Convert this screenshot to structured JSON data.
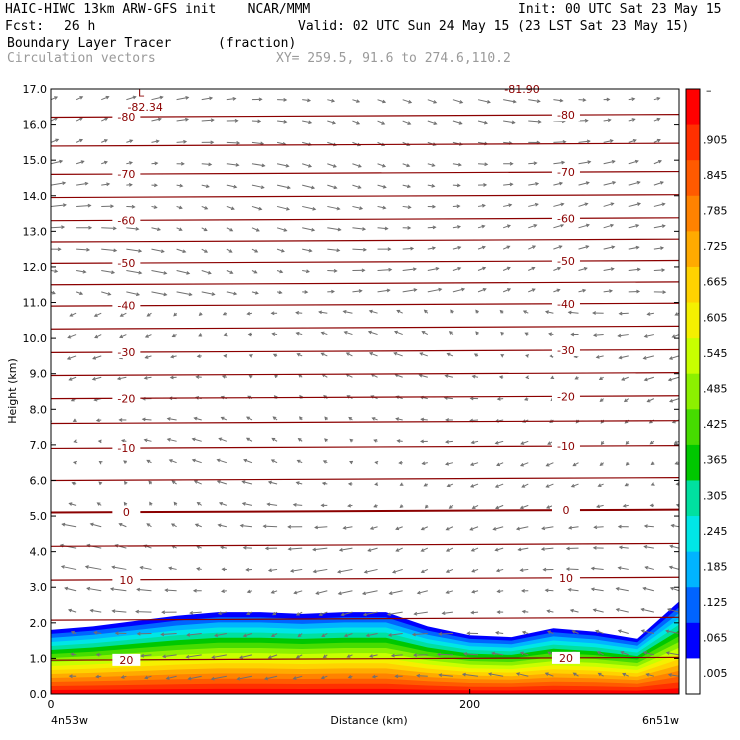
{
  "header": {
    "model_line": "HAIC-HIWC 13km ARW-GFS init    NCAR/MMM",
    "init_line": "Init: 00 UTC Sat 23 May 15",
    "fcst_label": "Fcst:",
    "fcst_value": "26 h",
    "valid_line": "Valid: 02 UTC Sun 24 May 15 (23 LST Sat 23 May 15)",
    "field_name": "Boundary Layer Tracer",
    "field_units": "(fraction)",
    "vector_name": "Circulation vectors",
    "xy_text": "XY= 259.5, 91.6 to 274.6,110.2"
  },
  "axes": {
    "ylabel": "Height (km)",
    "xlabel": "Distance (km)",
    "x_left_label": "4n53w",
    "x_right_label": "6n51w",
    "x_tick_labels": [
      "0",
      "200"
    ]
  },
  "colorbar": {
    "top_label": "–",
    "labels": [
      ".905",
      ".845",
      ".785",
      ".725",
      ".665",
      ".605",
      ".545",
      ".485",
      ".425",
      ".365",
      ".305",
      ".245",
      ".185",
      ".125",
      ".065",
      ".005"
    ],
    "colors": [
      "#ff0000",
      "#ff3000",
      "#ff5a00",
      "#ff8200",
      "#ffaa00",
      "#ffd200",
      "#f5f000",
      "#c8ff00",
      "#8cf000",
      "#46dc00",
      "#00c800",
      "#00e0a0",
      "#00e6e6",
      "#00b4ff",
      "#0064ff",
      "#0000ff",
      "#ffffff"
    ]
  },
  "chart_data": {
    "type": "heatmap",
    "title": "Boundary Layer Tracer",
    "xlabel": "Distance (km)",
    "ylabel": "Height (km)",
    "xlim": [
      0,
      300
    ],
    "ylim": [
      0,
      17
    ],
    "y_ticks": [
      0.0,
      1.0,
      2.0,
      3.0,
      4.0,
      5.0,
      6.0,
      7.0,
      8.0,
      9.0,
      10.0,
      11.0,
      12.0,
      13.0,
      14.0,
      15.0,
      16.0,
      17.0
    ],
    "x_ticks": [
      0,
      200
    ],
    "tracer_top_height_km": {
      "x": [
        0,
        20,
        40,
        60,
        80,
        100,
        120,
        140,
        160,
        180,
        200,
        220,
        240,
        260,
        280,
        300
      ],
      "top": [
        1.8,
        1.9,
        2.05,
        2.2,
        2.3,
        2.3,
        2.25,
        2.3,
        2.3,
        1.9,
        1.65,
        1.6,
        1.85,
        1.75,
        1.55,
        2.6
      ]
    },
    "temperature_contours": [
      {
        "label": "20",
        "height_km": 0.95
      },
      {
        "label": "10",
        "height_km": 3.2
      },
      {
        "label": "0",
        "height_km": 5.1
      },
      {
        "label": "-10",
        "height_km": 6.9
      },
      {
        "label": "-20",
        "height_km": 8.3
      },
      {
        "label": "-30",
        "height_km": 9.6
      },
      {
        "label": "-40",
        "height_km": 10.9
      },
      {
        "label": "-50",
        "height_km": 12.1
      },
      {
        "label": "-60",
        "height_km": 13.3
      },
      {
        "label": "-70",
        "height_km": 14.6
      },
      {
        "label": "-80",
        "height_km": 16.2
      }
    ],
    "extreme_labels": [
      {
        "text": "L",
        "x": 43,
        "y": 16.9
      },
      {
        "text": "-82.34",
        "x": 45,
        "y": 16.5
      },
      {
        "text": "-81.90",
        "x": 225,
        "y": 17.0
      }
    ]
  }
}
